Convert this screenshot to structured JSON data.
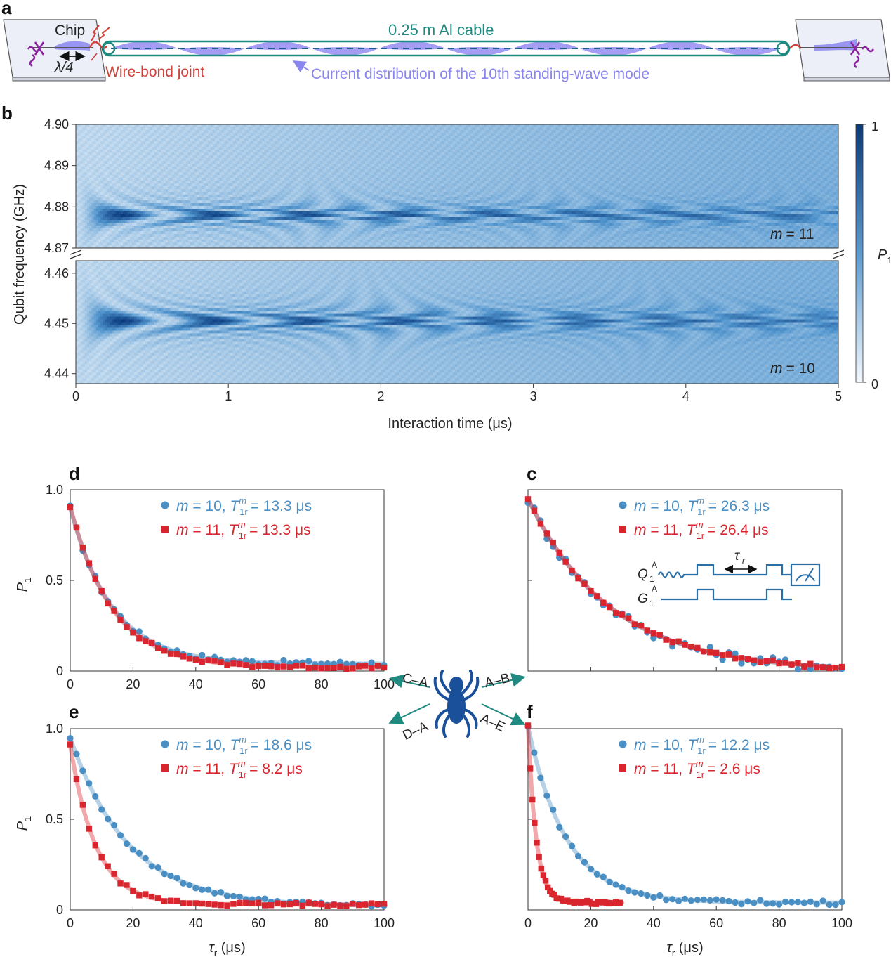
{
  "panel_a": {
    "label": "a",
    "chip_label": "Chip",
    "quarter_wave_label": "λ/4",
    "wire_bond_label": "Wire-bond joint",
    "cable_label": "0.25 m Al cable",
    "mode_label": "Current distribution of the 10th standing-wave mode",
    "colors": {
      "cable": "#1f8a80",
      "wire_bond": "#d0413a",
      "mode": "#8a86f0",
      "qubit": "#8a1fa0"
    }
  },
  "panel_b": {
    "label": "b",
    "ylabel": "Qubit frequency (GHz)",
    "xlabel": "Interaction time (μs)",
    "colorbar_label_main": "P",
    "colorbar_label_sub": "1",
    "colorbar_max": "1",
    "colorbar_min": "0",
    "top_mode_prefix": "m",
    "top_mode_value": "= 11",
    "bottom_mode_prefix": "m",
    "bottom_mode_value": "= 10",
    "colors": {
      "dark": "#0a3d7e",
      "light": "#eef5fb"
    }
  },
  "center": {
    "arrows": [
      "C–A",
      "A–B",
      "D–A",
      "A–E"
    ],
    "spider_icon": "spider-icon",
    "color": "#1f8a80"
  },
  "chart_data": [
    {
      "id": "b",
      "type": "heatmap",
      "xlabel": "Interaction time (μs)",
      "ylabel": "Qubit frequency (GHz)",
      "xlim": [
        0,
        5
      ],
      "x_ticks": [
        "0",
        "1",
        "2",
        "3",
        "4",
        "5"
      ],
      "colorbar": "P1",
      "colorbar_range": [
        0,
        1
      ],
      "subpanels": [
        {
          "mode": "m = 11",
          "ylim": [
            4.87,
            4.9
          ],
          "y_ticks": [
            "4.87",
            "4.88",
            "4.89",
            "4.90"
          ],
          "center_freq": 4.878
        },
        {
          "mode": "m = 10",
          "ylim": [
            4.438,
            4.4625
          ],
          "y_ticks": [
            "4.44",
            "4.45",
            "4.46"
          ],
          "center_freq": 4.4505
        }
      ]
    },
    {
      "id": "d",
      "label": "d",
      "type": "scatter",
      "xlim": [
        0,
        100
      ],
      "ylim": [
        0,
        1
      ],
      "x_ticks": [
        "0",
        "20",
        "40",
        "60",
        "80",
        "100"
      ],
      "y_ticks": [
        "0",
        "0.5",
        "1.0"
      ],
      "ylabel": "P1",
      "xlabel": "",
      "series": [
        {
          "name": "m = 10, T1r^m = 13.3 μs",
          "mode": "m = 10,",
          "tlabel": "= 13.3 μs",
          "color": "#4a8fc4",
          "marker": "circle",
          "amp": 0.86,
          "tau": 13.3,
          "offset": 0.04,
          "xmax": 100,
          "step": 2,
          "noise": 0.015
        },
        {
          "name": "m = 11, T1r^m = 13.3 μs",
          "mode": "m = 11,",
          "tlabel": "= 13.3 μs",
          "color": "#d9262e",
          "marker": "square",
          "amp": 0.89,
          "tau": 13.3,
          "offset": 0.02,
          "xmax": 100,
          "step": 2,
          "noise": 0.01
        }
      ]
    },
    {
      "id": "c",
      "label": "c",
      "type": "scatter",
      "xlim": [
        0,
        100
      ],
      "ylim": [
        0,
        1
      ],
      "x_ticks": [],
      "y_ticks": [],
      "ylabel": "",
      "xlabel": "",
      "series": [
        {
          "name": "m = 10, T1r^m = 26.3 μs",
          "mode": "m = 10,",
          "tlabel": "= 26.3 μs",
          "color": "#4a8fc4",
          "marker": "circle",
          "amp": 0.95,
          "tau": 26.3,
          "offset": 0.0,
          "xmax": 100,
          "step": 2,
          "noise": 0.03
        },
        {
          "name": "m = 11, T1r^m = 26.4 μs",
          "mode": "m = 11,",
          "tlabel": "= 26.4 μs",
          "color": "#d9262e",
          "marker": "square",
          "amp": 0.95,
          "tau": 26.4,
          "offset": 0.0,
          "xmax": 100,
          "step": 2,
          "noise": 0.01
        }
      ],
      "inset": {
        "q": "Q",
        "q_sup": "A",
        "q_sub": "1",
        "g": "G",
        "g_sup": "A",
        "g_sub": "1",
        "tau": "τ",
        "tau_sub": "r"
      }
    },
    {
      "id": "e",
      "label": "e",
      "type": "scatter",
      "xlim": [
        0,
        100
      ],
      "ylim": [
        0,
        1
      ],
      "x_ticks": [
        "0",
        "20",
        "40",
        "60",
        "80",
        "100"
      ],
      "y_ticks": [
        "0",
        "0.5",
        "1.0"
      ],
      "ylabel": "P1",
      "xlabel": "τr (μs)",
      "series": [
        {
          "name": "m = 10, T1r^m = 18.6 μs",
          "mode": "m = 10,",
          "tlabel": "= 18.6 μs",
          "color": "#4a8fc4",
          "marker": "circle",
          "amp": 0.93,
          "tau": 18.6,
          "offset": 0.02,
          "xmax": 100,
          "step": 2,
          "noise": 0.01
        },
        {
          "name": "m = 11, T1r^m = 8.2 μs",
          "mode": "m = 11,",
          "tlabel": "= 8.2 μs",
          "color": "#d9262e",
          "marker": "square",
          "amp": 0.88,
          "tau": 8.2,
          "offset": 0.03,
          "xmax": 100,
          "step": 2,
          "noise": 0.01
        }
      ]
    },
    {
      "id": "f",
      "label": "f",
      "type": "scatter",
      "xlim": [
        0,
        100
      ],
      "ylim": [
        0,
        1
      ],
      "x_ticks": [
        "0",
        "20",
        "40",
        "60",
        "80",
        "100"
      ],
      "y_ticks": [],
      "ylabel": "",
      "xlabel": "τr (μs)",
      "series": [
        {
          "name": "m = 10, T1r^m = 12.2 μs",
          "mode": "m = 10,",
          "tlabel": "= 12.2 μs",
          "color": "#4a8fc4",
          "marker": "circle",
          "amp": 0.97,
          "tau": 12.2,
          "offset": 0.04,
          "xmax": 100,
          "step": 2,
          "noise": 0.012
        },
        {
          "name": "m = 11, T1r^m = 2.6 μs",
          "mode": "m = 11,",
          "tlabel": "= 2.6 μs",
          "color": "#d9262e",
          "marker": "square",
          "amp": 0.97,
          "tau": 2.6,
          "offset": 0.04,
          "xmax": 30,
          "step": 0.7,
          "noise": 0.01
        }
      ]
    }
  ]
}
